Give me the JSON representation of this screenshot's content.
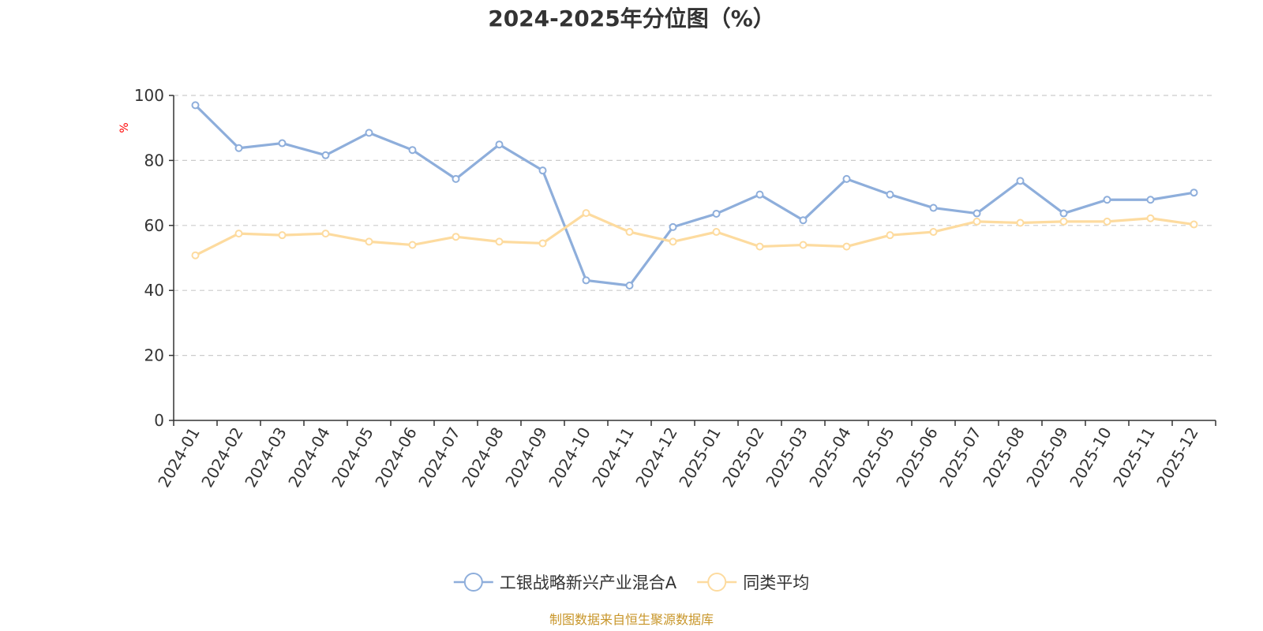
{
  "chart_data": {
    "type": "line",
    "title": "2024-2025年分位图（%）",
    "ylabel": "%",
    "ylim": [
      0,
      100
    ],
    "yticks": [
      0,
      20,
      40,
      60,
      80,
      100
    ],
    "grid": true,
    "legend_position": "bottom-center",
    "categories": [
      "2024-01",
      "2024-02",
      "2024-03",
      "2024-04",
      "2024-05",
      "2024-06",
      "2024-07",
      "2024-08",
      "2024-09",
      "2024-10",
      "2024-11",
      "2024-12",
      "2025-01",
      "2025-02",
      "2025-03",
      "2025-04",
      "2025-05",
      "2025-06",
      "2025-07",
      "2025-08",
      "2025-09",
      "2025-10",
      "2025-11",
      "2025-12"
    ],
    "series": [
      {
        "name": "工银战略新兴产业混合A",
        "color": "#8eaedb",
        "values": [
          97,
          83.8,
          85.3,
          81.6,
          88.5,
          83.2,
          74.3,
          84.9,
          76.9,
          43.1,
          41.5,
          59.5,
          63.6,
          69.5,
          61.6,
          74.3,
          69.5,
          65.4,
          63.7,
          73.7,
          63.7,
          67.9,
          67.9,
          70.1
        ]
      },
      {
        "name": "同类平均",
        "color": "#fddb9f",
        "values": [
          50.8,
          57.5,
          57.0,
          57.5,
          55.0,
          54.0,
          56.5,
          55.0,
          54.5,
          63.8,
          58.0,
          55.0,
          58.0,
          53.5,
          54.0,
          53.5,
          57.0,
          58.0,
          61.2,
          60.8,
          61.2,
          61.2,
          62.2,
          60.3
        ]
      }
    ]
  },
  "source": {
    "text": "制图数据来自恒生聚源数据库",
    "color": "#c8962a"
  },
  "colors": {
    "axis": "#333333",
    "grid": "#cccccc",
    "unit": "#ff0000"
  }
}
